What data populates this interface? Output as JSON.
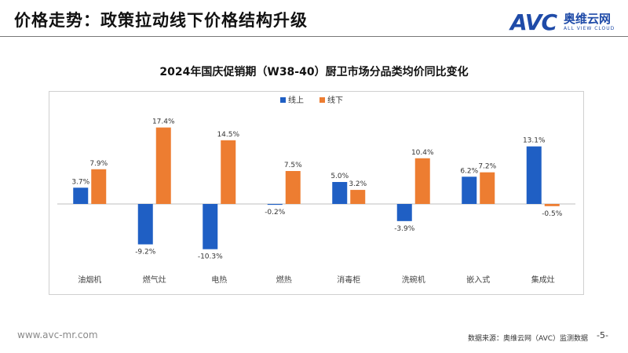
{
  "slide": {
    "title": "价格走势：政策拉动线下价格结构升级",
    "footer_url": "www.avc-mr.com",
    "footer_source": "数据来源：奥维云网（AVC）监测数据",
    "page": "-5-"
  },
  "logo": {
    "mark": "AVC",
    "cn": "奥维云网",
    "en": "ALL VIEW CLOUD"
  },
  "colors": {
    "online": "#1f5fc4",
    "offline": "#ed7d31",
    "axis": "#bfbfbf"
  },
  "chart_data": {
    "type": "bar",
    "title": "2024年国庆促销期（W38-40）厨卫市场分品类均价同比变化",
    "categories": [
      "油烟机",
      "燃气灶",
      "电热",
      "燃热",
      "消毒柜",
      "洗碗机",
      "嵌入式",
      "集成灶"
    ],
    "series": [
      {
        "name": "线上",
        "values": [
          3.7,
          -9.2,
          -10.3,
          -0.2,
          5.0,
          -3.9,
          6.2,
          13.1
        ],
        "labels": [
          "3.7%",
          "-9.2%",
          "-10.3%",
          "-0.2%",
          "5.0%",
          "-3.9%",
          "6.2%",
          "13.1%"
        ]
      },
      {
        "name": "线下",
        "values": [
          7.9,
          17.4,
          14.5,
          7.5,
          3.2,
          10.4,
          7.2,
          -0.5
        ],
        "labels": [
          "7.9%",
          "17.4%",
          "14.5%",
          "7.5%",
          "3.2%",
          "10.4%",
          "7.2%",
          "-0.5%"
        ]
      }
    ],
    "ylim": [
      -15,
      20
    ],
    "legend_position": "top-center",
    "grid": false
  }
}
